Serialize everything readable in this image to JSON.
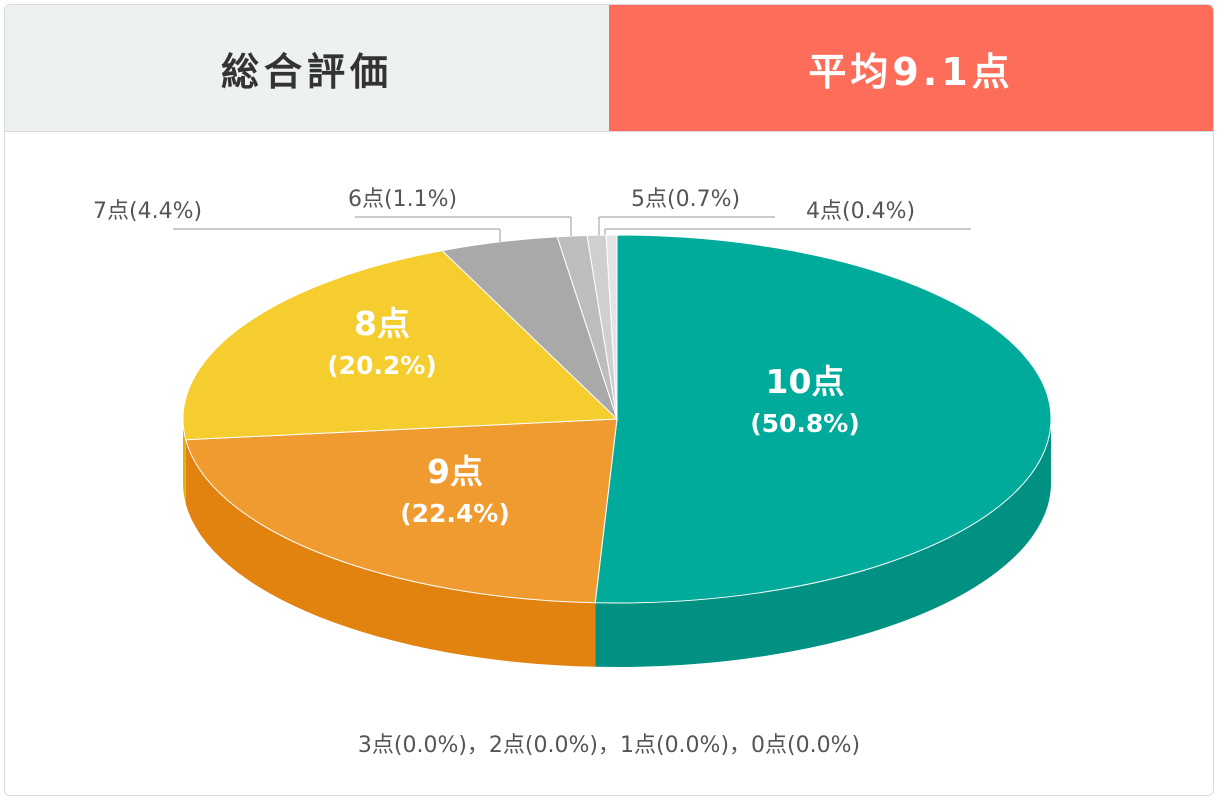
{
  "header": {
    "title": "総合評価",
    "average": "平均9.1点"
  },
  "chart_data": {
    "type": "pie",
    "categories": [
      "10点",
      "9点",
      "8点",
      "7点",
      "6点",
      "5点",
      "4点"
    ],
    "values": [
      50.8,
      22.4,
      20.2,
      4.4,
      1.1,
      0.7,
      0.4
    ],
    "value_labels": [
      "(50.8%)",
      "(22.4%)",
      "(20.2%)",
      "(4.4%)",
      "(1.1%)",
      "(0.7%)",
      "(0.4%)"
    ],
    "colors": [
      "#00ab9b",
      "#f09b30",
      "#f6cd2e",
      "#a9a9a9",
      "#bdbdbd",
      "#cfcfcf",
      "#e4e4e4"
    ],
    "side_colors": [
      "#009182",
      "#e2820f",
      "#dcb10c",
      "#8e8e8e",
      "#a3a3a3",
      "#b8b8b8",
      "#cdcdcd"
    ],
    "three_d": true,
    "label_style": [
      "inside",
      "inside",
      "inside",
      "callout",
      "callout",
      "callout",
      "callout"
    ],
    "footer_note": "3点(0.0%)，2点(0.0%)，1点(0.0%)，0点(0.0%)"
  }
}
